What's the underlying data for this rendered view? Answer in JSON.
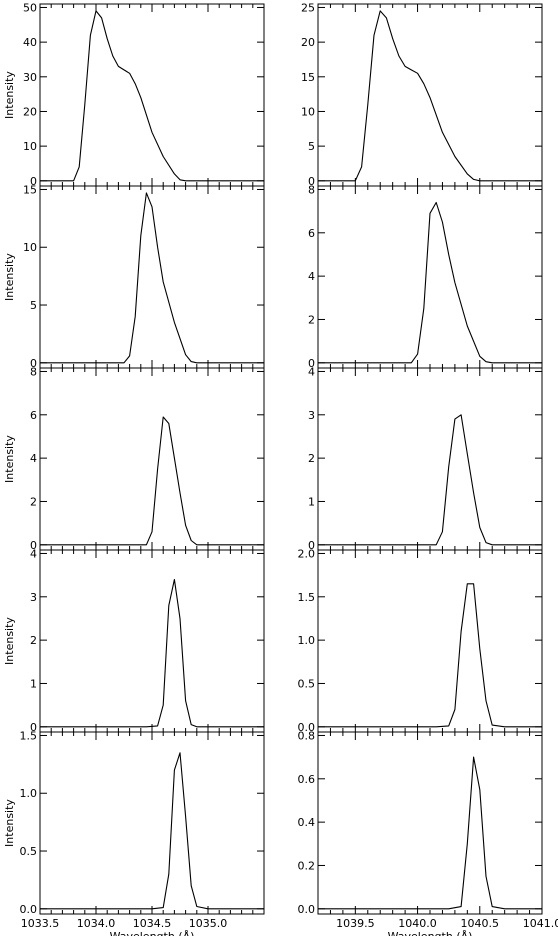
{
  "chart_data": [
    {
      "type": "line",
      "panel": "row1-left",
      "xlim": [
        1033.5,
        1035.5
      ],
      "ylim": [
        -1.5,
        51
      ],
      "yticks": [
        0,
        10,
        20,
        30,
        40,
        50
      ],
      "ytick_labels": [
        "0",
        "10",
        "20",
        "30",
        "40",
        "50"
      ],
      "ylabel": "Intensity",
      "xlabel": "",
      "x": [
        1033.7,
        1033.8,
        1033.85,
        1033.9,
        1033.95,
        1034.0,
        1034.05,
        1034.1,
        1034.15,
        1034.2,
        1034.25,
        1034.3,
        1034.35,
        1034.4,
        1034.5,
        1034.6,
        1034.7,
        1034.75,
        1034.8,
        1034.9
      ],
      "values": [
        0,
        0,
        4,
        22,
        42,
        49,
        47,
        41,
        36,
        33,
        32,
        31,
        28,
        24,
        14,
        7,
        2,
        0.3,
        0,
        0
      ]
    },
    {
      "type": "line",
      "panel": "row1-right",
      "xlim": [
        1039.2,
        1041.0
      ],
      "ylim": [
        -0.75,
        25.5
      ],
      "yticks": [
        0,
        5,
        10,
        15,
        20,
        25
      ],
      "ytick_labels": [
        "0",
        "5",
        "10",
        "15",
        "20",
        "25"
      ],
      "ylabel": "",
      "xlabel": "",
      "x": [
        1039.4,
        1039.5,
        1039.55,
        1039.6,
        1039.65,
        1039.7,
        1039.75,
        1039.8,
        1039.85,
        1039.9,
        1039.95,
        1040.0,
        1040.05,
        1040.1,
        1040.2,
        1040.3,
        1040.4,
        1040.45,
        1040.5,
        1040.6
      ],
      "values": [
        0,
        0,
        2,
        11,
        21,
        24.5,
        23.5,
        20.5,
        18,
        16.5,
        16,
        15.5,
        14,
        12,
        7,
        3.5,
        1,
        0.2,
        0,
        0
      ]
    },
    {
      "type": "line",
      "panel": "row2-left",
      "xlim": [
        1033.5,
        1035.5
      ],
      "ylim": [
        -0.45,
        15.3
      ],
      "yticks": [
        0,
        5,
        10,
        15
      ],
      "ytick_labels": [
        "0",
        "5",
        "10",
        "15"
      ],
      "ylabel": "Intensity",
      "xlabel": "",
      "x": [
        1034.1,
        1034.25,
        1034.3,
        1034.35,
        1034.4,
        1034.45,
        1034.5,
        1034.55,
        1034.6,
        1034.7,
        1034.8,
        1034.85,
        1034.9,
        1035.0
      ],
      "values": [
        0,
        0,
        0.6,
        4,
        11,
        14.7,
        13.5,
        10,
        7,
        3.5,
        0.7,
        0.1,
        0,
        0
      ]
    },
    {
      "type": "line",
      "panel": "row2-right",
      "xlim": [
        1039.2,
        1041.0
      ],
      "ylim": [
        -0.24,
        8.16
      ],
      "yticks": [
        0,
        2,
        4,
        6,
        8
      ],
      "ytick_labels": [
        "0",
        "2",
        "4",
        "6",
        "8"
      ],
      "ylabel": "",
      "xlabel": "",
      "x": [
        1039.8,
        1039.95,
        1040.0,
        1040.05,
        1040.1,
        1040.15,
        1040.2,
        1040.25,
        1040.3,
        1040.4,
        1040.5,
        1040.55,
        1040.6,
        1040.7
      ],
      "values": [
        0,
        0,
        0.4,
        2.5,
        6.9,
        7.4,
        6.5,
        5,
        3.7,
        1.7,
        0.3,
        0.05,
        0,
        0
      ]
    },
    {
      "type": "line",
      "panel": "row3-left",
      "xlim": [
        1033.5,
        1035.5
      ],
      "ylim": [
        -0.24,
        8.16
      ],
      "yticks": [
        0,
        2,
        4,
        6,
        8
      ],
      "ytick_labels": [
        "0",
        "2",
        "4",
        "6",
        "8"
      ],
      "ylabel": "Intensity",
      "xlabel": "",
      "x": [
        1034.3,
        1034.45,
        1034.5,
        1034.55,
        1034.6,
        1034.65,
        1034.7,
        1034.75,
        1034.8,
        1034.85,
        1034.9,
        1035.0
      ],
      "values": [
        0,
        0,
        0.6,
        3.5,
        5.9,
        5.6,
        4,
        2.4,
        0.9,
        0.2,
        0,
        0
      ]
    },
    {
      "type": "line",
      "panel": "row3-right",
      "xlim": [
        1039.2,
        1041.0
      ],
      "ylim": [
        -0.12,
        4.08
      ],
      "yticks": [
        0,
        1,
        2,
        3,
        4
      ],
      "ytick_labels": [
        "0",
        "1",
        "2",
        "3",
        "4"
      ],
      "ylabel": "",
      "xlabel": "",
      "x": [
        1040.0,
        1040.15,
        1040.2,
        1040.25,
        1040.3,
        1040.35,
        1040.4,
        1040.45,
        1040.5,
        1040.55,
        1040.6,
        1040.7
      ],
      "values": [
        0,
        0,
        0.3,
        1.8,
        2.9,
        3.0,
        2.1,
        1.2,
        0.4,
        0.05,
        0,
        0
      ]
    },
    {
      "type": "line",
      "panel": "row4-left",
      "xlim": [
        1033.5,
        1035.5
      ],
      "ylim": [
        -0.12,
        4.08
      ],
      "yticks": [
        0,
        1,
        2,
        3,
        4
      ],
      "ytick_labels": [
        "0",
        "1",
        "2",
        "3",
        "4"
      ],
      "ylabel": "Intensity",
      "xlabel": "",
      "x": [
        1034.45,
        1034.55,
        1034.6,
        1034.65,
        1034.7,
        1034.75,
        1034.8,
        1034.85,
        1034.9,
        1035.0
      ],
      "values": [
        0,
        0.02,
        0.5,
        2.8,
        3.4,
        2.5,
        0.6,
        0.05,
        0,
        0
      ]
    },
    {
      "type": "line",
      "panel": "row4-right",
      "xlim": [
        1039.2,
        1041.0
      ],
      "ylim": [
        -0.06,
        2.04
      ],
      "yticks": [
        0,
        0.5,
        1.0,
        1.5,
        2.0
      ],
      "ytick_labels": [
        "0.0",
        "0.5",
        "1.0",
        "1.5",
        "2.0"
      ],
      "ylabel": "",
      "xlabel": "",
      "x": [
        1040.15,
        1040.25,
        1040.3,
        1040.35,
        1040.4,
        1040.45,
        1040.5,
        1040.55,
        1040.6,
        1040.7
      ],
      "values": [
        0,
        0.01,
        0.2,
        1.1,
        1.65,
        1.65,
        0.9,
        0.3,
        0.02,
        0
      ]
    },
    {
      "type": "line",
      "panel": "row5-left",
      "xlim": [
        1033.5,
        1035.5
      ],
      "ylim": [
        -0.045,
        1.53
      ],
      "yticks": [
        0,
        0.5,
        1.0,
        1.5
      ],
      "ytick_labels": [
        "0.0",
        "0.5",
        "1.0",
        "1.5"
      ],
      "xticks": [
        1033.5,
        1034.0,
        1034.5,
        1035.0
      ],
      "xtick_labels": [
        "1033.5",
        "1034.0",
        "1034.5",
        "1035.0"
      ],
      "ylabel": "Intensity",
      "xlabel": "Wavelength (Å)",
      "x": [
        1034.5,
        1034.6,
        1034.65,
        1034.7,
        1034.75,
        1034.8,
        1034.85,
        1034.9,
        1035.0
      ],
      "values": [
        0,
        0.01,
        0.3,
        1.2,
        1.35,
        0.8,
        0.2,
        0.02,
        0
      ]
    },
    {
      "type": "line",
      "panel": "row5-right",
      "xlim": [
        1039.2,
        1041.0
      ],
      "ylim": [
        -0.024,
        0.816
      ],
      "yticks": [
        0,
        0.2,
        0.4,
        0.6,
        0.8
      ],
      "ytick_labels": [
        "0.0",
        "0.2",
        "0.4",
        "0.6",
        "0.8"
      ],
      "xticks": [
        1039.5,
        1040.0,
        1040.5,
        1041.0
      ],
      "xtick_labels": [
        "1039.5",
        "1040.0",
        "1040.5",
        "1041.0"
      ],
      "ylabel": "",
      "xlabel": "Wavelength (Å)",
      "x": [
        1040.25,
        1040.35,
        1040.4,
        1040.45,
        1040.5,
        1040.55,
        1040.6,
        1040.7
      ],
      "values": [
        0,
        0.01,
        0.3,
        0.7,
        0.55,
        0.15,
        0.01,
        0
      ]
    }
  ]
}
